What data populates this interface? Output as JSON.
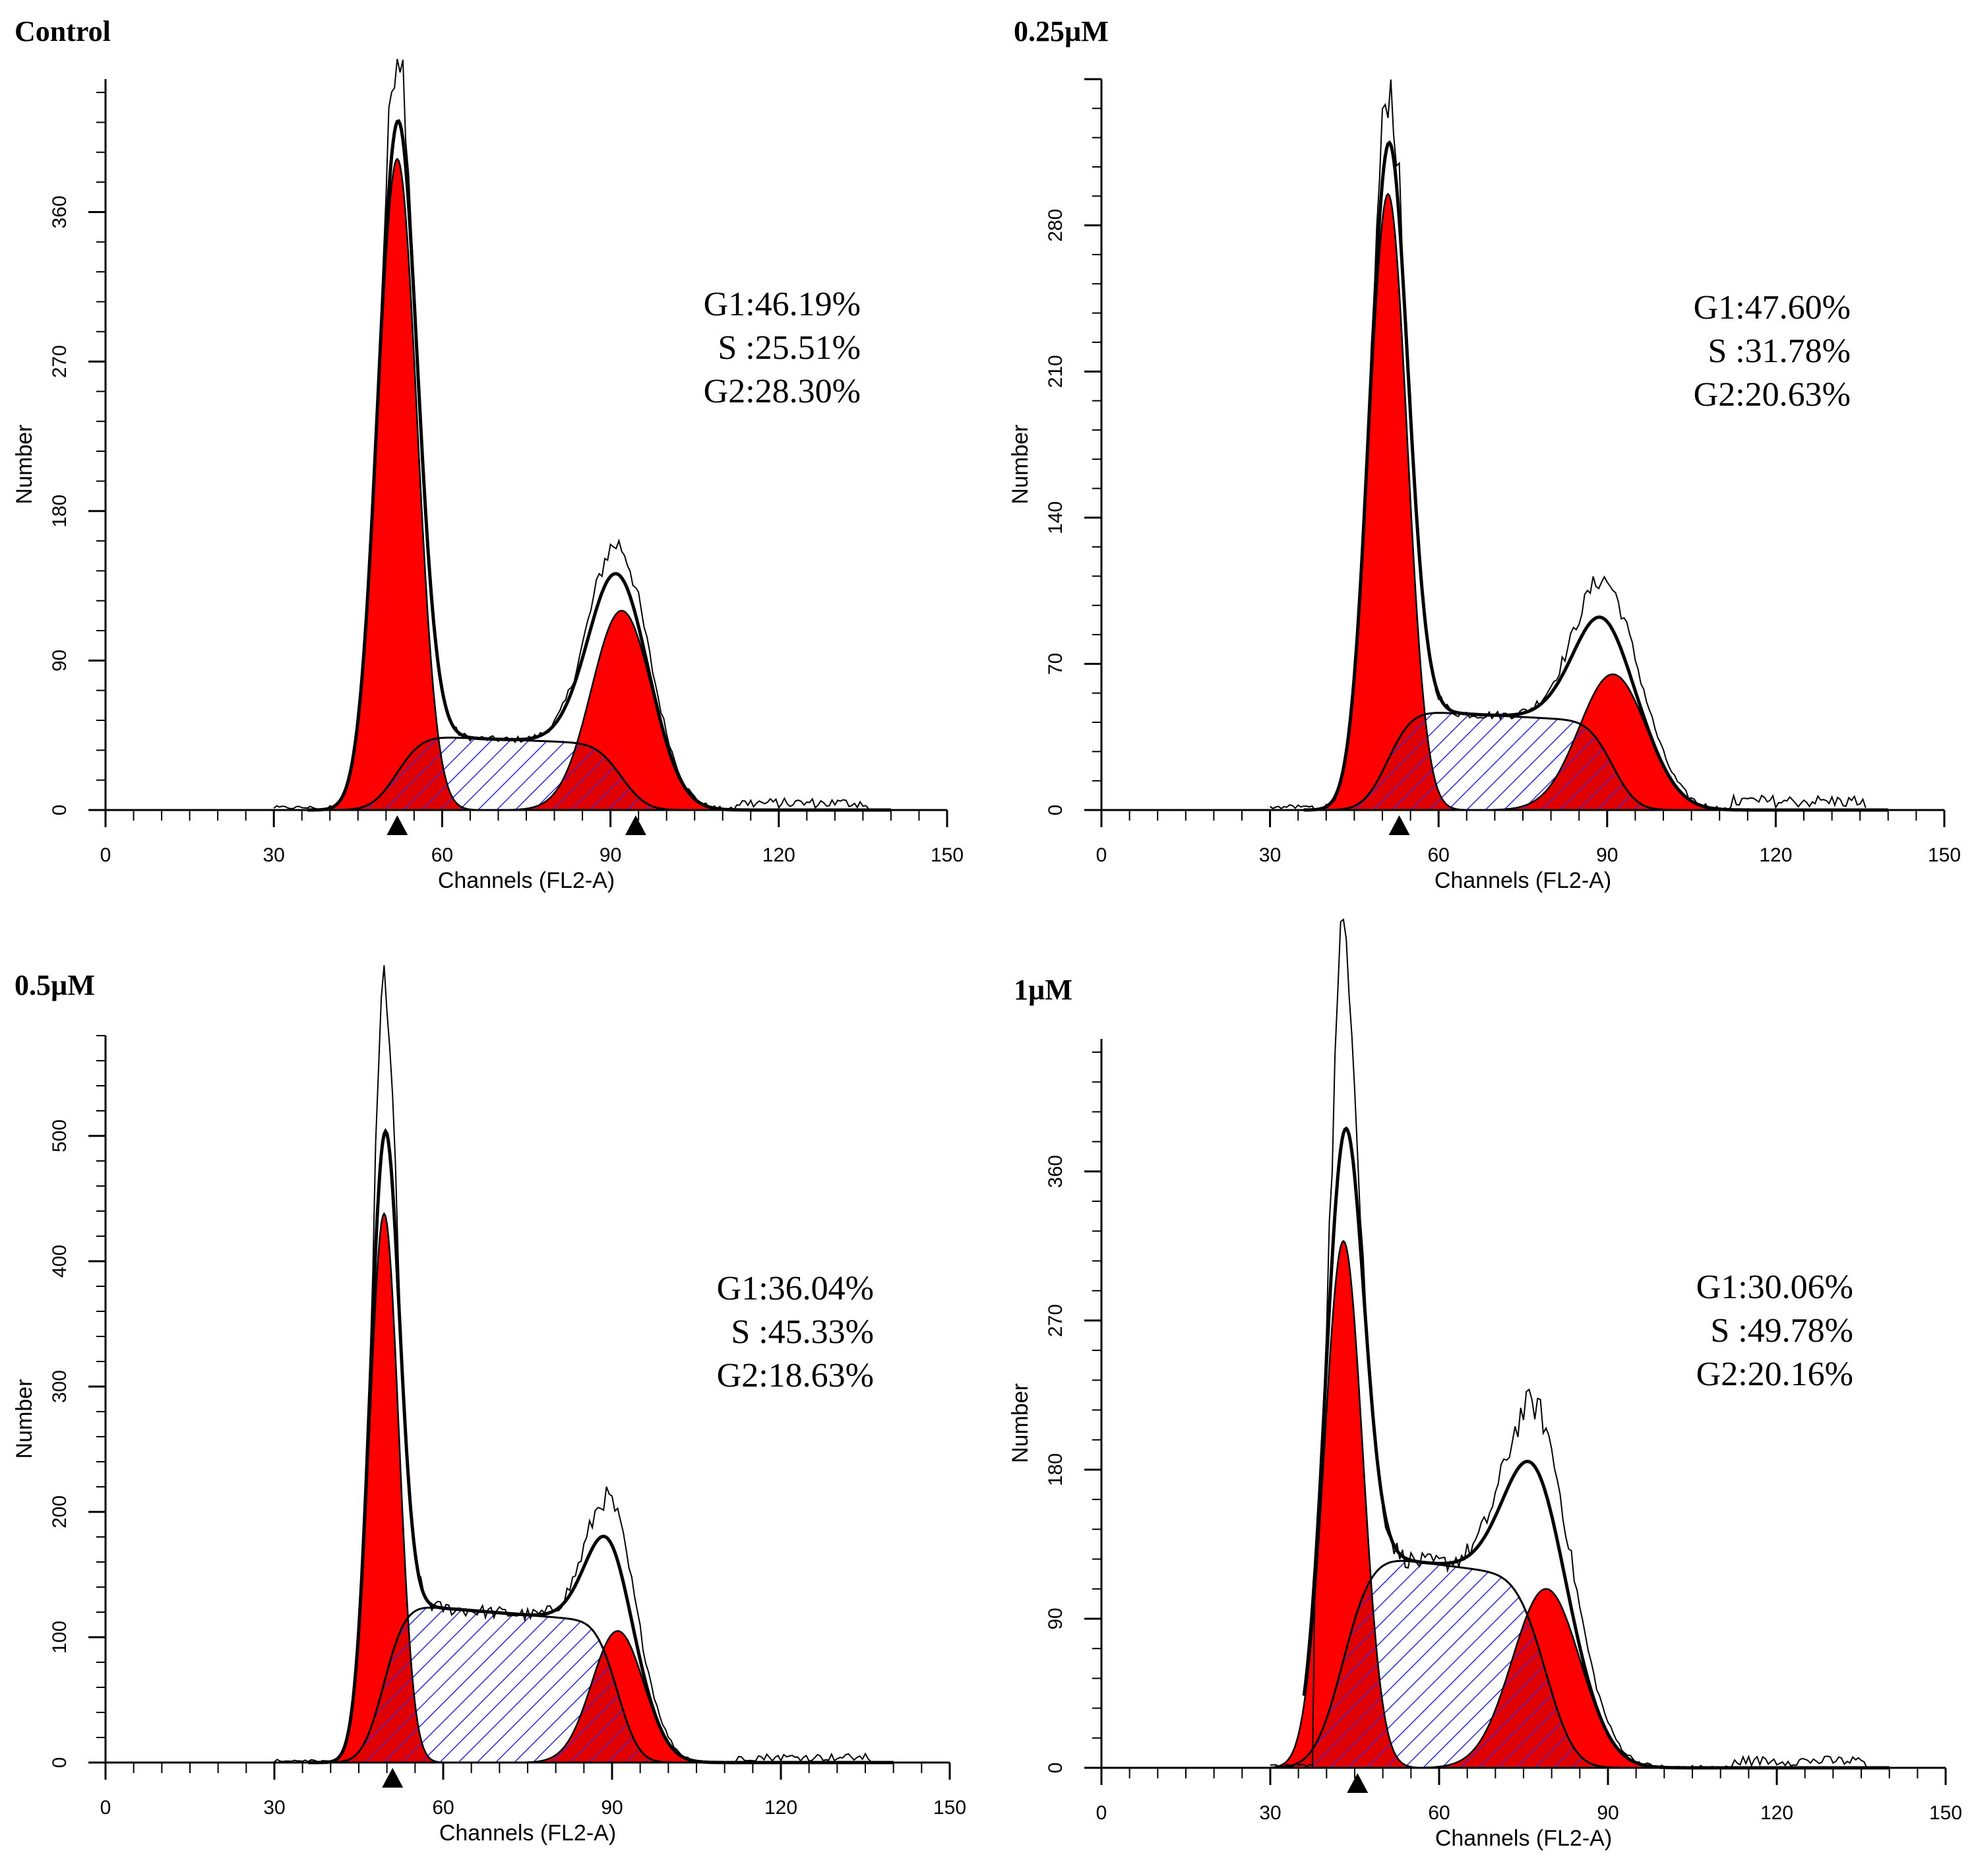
{
  "chart_data": [
    {
      "type": "area",
      "title": "Control",
      "xlabel": "Channels (FL2-A)",
      "ylabel": "Number",
      "xlim": [
        0,
        150
      ],
      "ylim": [
        0,
        440
      ],
      "xticks": [
        0,
        30,
        60,
        90,
        120,
        150
      ],
      "yticks": [
        0,
        90,
        180,
        270,
        360
      ],
      "markers_x": [
        52,
        94.5
      ],
      "annotations": [
        "G1:46.19%",
        "S :25.51%",
        "G2:28.30%"
      ],
      "colors": {
        "g1": "#ff0000",
        "g2": "#ff0000",
        "s_hatch": "#2a2ad0",
        "outline": "#000000"
      },
      "components": {
        "g1": {
          "mu": 52,
          "sigma": 3.5,
          "amp": 392
        },
        "g2": {
          "mu": 92,
          "sigma": 5.4,
          "amp": 120
        },
        "s": {
          "start": 52,
          "end": 92,
          "height": 45,
          "edge_sigma": 3.5
        }
      },
      "peaks": {
        "g1_raw": 440,
        "g2_raw": 160
      }
    },
    {
      "type": "area",
      "title": "0.25µM",
      "xlabel": "Channels (FL2-A)",
      "ylabel": "Number",
      "xlim": [
        0,
        150
      ],
      "ylim": [
        0,
        350
      ],
      "xticks": [
        0,
        30,
        60,
        90,
        120,
        150
      ],
      "yticks": [
        0,
        70,
        140,
        210,
        280
      ],
      "markers_x": [
        53
      ],
      "annotations": [
        "G1:47.60%",
        "S :31.78%",
        "G2:20.63%"
      ],
      "colors": {
        "g1": "#ff0000",
        "g2": "#ff0000",
        "s_hatch": "#2a2ad0",
        "outline": "#000000"
      },
      "components": {
        "g1": {
          "mu": 51,
          "sigma": 3.4,
          "amp": 295
        },
        "g2": {
          "mu": 91,
          "sigma": 6.0,
          "amp": 65
        },
        "s": {
          "start": 51,
          "end": 91,
          "height": 48,
          "edge_sigma": 3.4
        }
      },
      "peaks": {
        "g1_raw": 322,
        "g2_raw": 108
      }
    },
    {
      "type": "area",
      "title": "0.5µM",
      "xlabel": "Channels (FL2-A)",
      "ylabel": "Number",
      "xlim": [
        0,
        150
      ],
      "ylim": [
        0,
        580
      ],
      "xticks": [
        0,
        30,
        60,
        90,
        120,
        150
      ],
      "yticks": [
        0,
        100,
        200,
        300,
        400,
        500
      ],
      "markers_x": [
        51
      ],
      "annotations": [
        "G1:36.04%",
        "S :45.33%",
        "G2:18.63%"
      ],
      "colors": {
        "g1": "#ff0000",
        "g2": "#ff0000",
        "s_hatch": "#2a2ad0",
        "outline": "#000000"
      },
      "components": {
        "g1": {
          "mu": 49.5,
          "sigma": 2.6,
          "amp": 438
        },
        "g2": {
          "mu": 91,
          "sigma": 4.6,
          "amp": 105
        },
        "s": {
          "start": 49.5,
          "end": 91,
          "height": 127,
          "edge_sigma": 3.0
        }
      },
      "peaks": {
        "g1_raw": 560,
        "g2_raw": 182
      }
    },
    {
      "type": "area",
      "title": "1µM",
      "xlabel": "Channels (FL2-A)",
      "ylabel": "Number",
      "xlim": [
        0,
        150
      ],
      "ylim": [
        0,
        440
      ],
      "xticks": [
        0,
        30,
        60,
        90,
        120,
        150
      ],
      "yticks": [
        0,
        90,
        180,
        270,
        360
      ],
      "markers_x": [
        45.5
      ],
      "annotations": [
        "G1:30.06%",
        "S :49.78%",
        "G2:20.16%"
      ],
      "colors": {
        "g1": "#ff0000",
        "g2": "#ff0000",
        "s_hatch": "#2a2ad0",
        "outline": "#000000"
      },
      "components": {
        "g1": {
          "mu": 43,
          "sigma": 3.4,
          "amp": 318
        },
        "g2": {
          "mu": 79,
          "sigma": 6.0,
          "amp": 108
        },
        "s": {
          "start": 43,
          "end": 79,
          "height": 130,
          "edge_sigma": 4.0
        }
      },
      "peaks": {
        "g1_raw": 442,
        "g2_raw": 195
      }
    }
  ]
}
